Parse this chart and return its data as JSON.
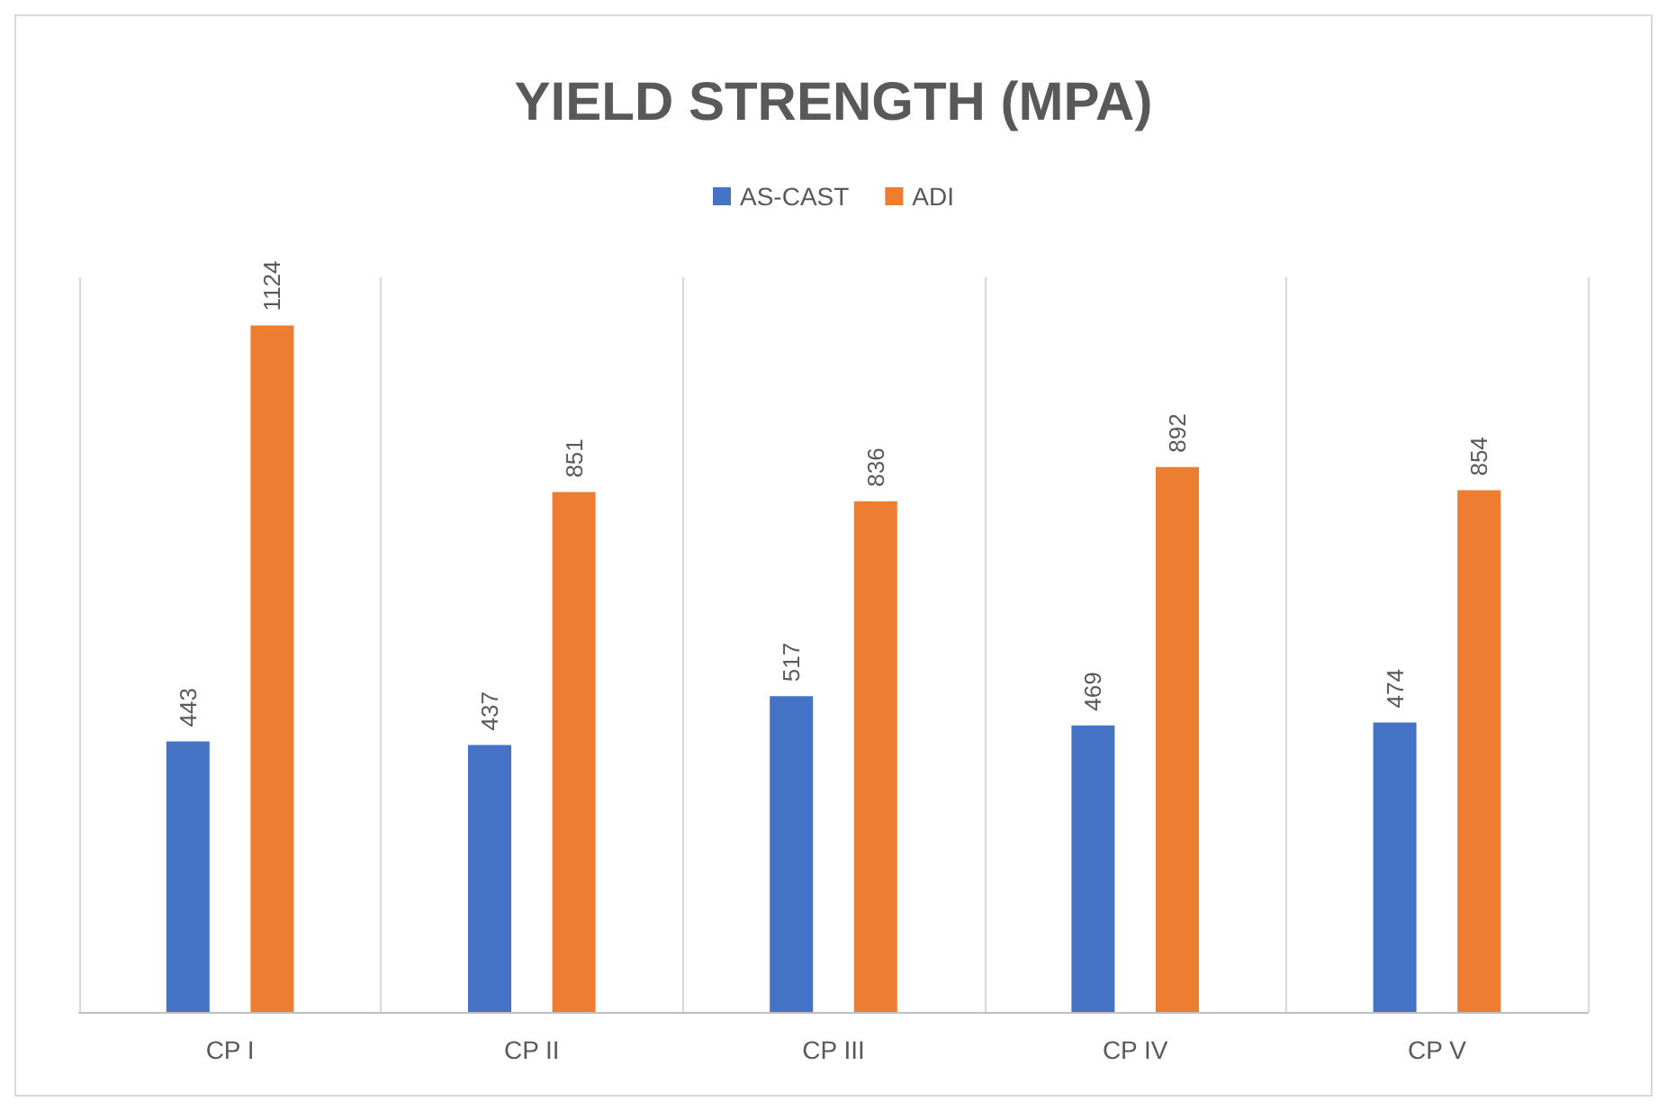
{
  "chart_data": {
    "type": "bar",
    "title": "YIELD STRENGTH (MPA)",
    "categories": [
      "CP I",
      "CP II",
      "CP III",
      "CP IV",
      "CP V"
    ],
    "series": [
      {
        "name": "AS-CAST",
        "color": "#4472c4",
        "values": [
          443,
          437,
          517,
          469,
          474
        ]
      },
      {
        "name": "ADI",
        "color": "#ed7d31",
        "values": [
          1124,
          851,
          836,
          892,
          854
        ]
      }
    ],
    "data_labels": true,
    "legend": "top",
    "grid": "x"
  }
}
